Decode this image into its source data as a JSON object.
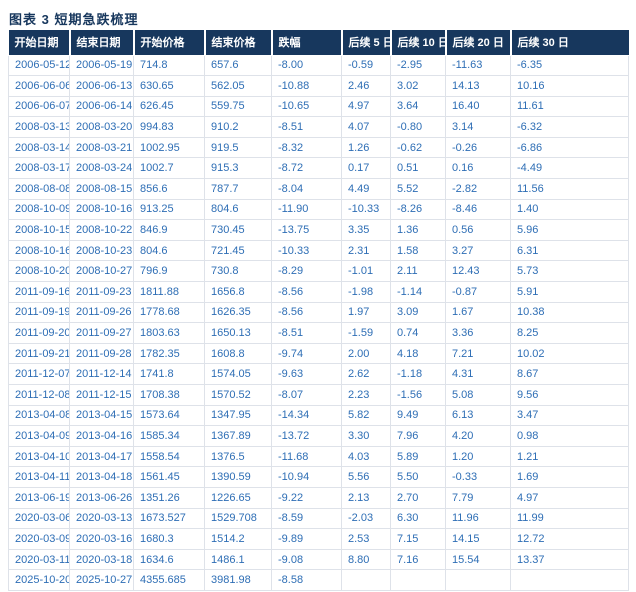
{
  "figure": {
    "title": "图表 3  短期急跌梳理"
  },
  "colors": {
    "header_bg": "#17375D",
    "header_text": "#FFFFFF",
    "cell_text": "#2E6EB5",
    "title_text": "#17375D",
    "border": "#DEE2E9",
    "page_bg": "#FFFFFF"
  },
  "chart_data": {
    "type": "table",
    "title": "图表 3  短期急跌梳理",
    "columns": [
      "开始日期",
      "结束日期",
      "开始价格",
      "结束价格",
      "跌幅",
      "后续 5 日",
      "后续 10 日",
      "后续 20 日",
      "后续 30 日"
    ],
    "rows": [
      [
        "2006-05-12",
        "2006-05-19",
        "714.8",
        "657.6",
        "-8.00",
        "-0.59",
        "-2.95",
        "-11.63",
        "-6.35"
      ],
      [
        "2006-06-06",
        "2006-06-13",
        "630.65",
        "562.05",
        "-10.88",
        "2.46",
        "3.02",
        "14.13",
        "10.16"
      ],
      [
        "2006-06-07",
        "2006-06-14",
        "626.45",
        "559.75",
        "-10.65",
        "4.97",
        "3.64",
        "16.40",
        "11.61"
      ],
      [
        "2008-03-13",
        "2008-03-20",
        "994.83",
        "910.2",
        "-8.51",
        "4.07",
        "-0.80",
        "3.14",
        "-6.32"
      ],
      [
        "2008-03-14",
        "2008-03-21",
        "1002.95",
        "919.5",
        "-8.32",
        "1.26",
        "-0.62",
        "-0.26",
        "-6.86"
      ],
      [
        "2008-03-17",
        "2008-03-24",
        "1002.7",
        "915.3",
        "-8.72",
        "0.17",
        "0.51",
        "0.16",
        "-4.49"
      ],
      [
        "2008-08-08",
        "2008-08-15",
        "856.6",
        "787.7",
        "-8.04",
        "4.49",
        "5.52",
        "-2.82",
        "11.56"
      ],
      [
        "2008-10-09",
        "2008-10-16",
        "913.25",
        "804.6",
        "-11.90",
        "-10.33",
        "-8.26",
        "-8.46",
        "1.40"
      ],
      [
        "2008-10-15",
        "2008-10-22",
        "846.9",
        "730.45",
        "-13.75",
        "3.35",
        "1.36",
        "0.56",
        "5.96"
      ],
      [
        "2008-10-16",
        "2008-10-23",
        "804.6",
        "721.45",
        "-10.33",
        "2.31",
        "1.58",
        "3.27",
        "6.31"
      ],
      [
        "2008-10-20",
        "2008-10-27",
        "796.9",
        "730.8",
        "-8.29",
        "-1.01",
        "2.11",
        "12.43",
        "5.73"
      ],
      [
        "2011-09-16",
        "2011-09-23",
        "1811.88",
        "1656.8",
        "-8.56",
        "-1.98",
        "-1.14",
        "-0.87",
        "5.91"
      ],
      [
        "2011-09-19",
        "2011-09-26",
        "1778.68",
        "1626.35",
        "-8.56",
        "1.97",
        "3.09",
        "1.67",
        "10.38"
      ],
      [
        "2011-09-20",
        "2011-09-27",
        "1803.63",
        "1650.13",
        "-8.51",
        "-1.59",
        "0.74",
        "3.36",
        "8.25"
      ],
      [
        "2011-09-21",
        "2011-09-28",
        "1782.35",
        "1608.8",
        "-9.74",
        "2.00",
        "4.18",
        "7.21",
        "10.02"
      ],
      [
        "2011-12-07",
        "2011-12-14",
        "1741.8",
        "1574.05",
        "-9.63",
        "2.62",
        "-1.18",
        "4.31",
        "8.67"
      ],
      [
        "2011-12-08",
        "2011-12-15",
        "1708.38",
        "1570.52",
        "-8.07",
        "2.23",
        "-1.56",
        "5.08",
        "9.56"
      ],
      [
        "2013-04-08",
        "2013-04-15",
        "1573.64",
        "1347.95",
        "-14.34",
        "5.82",
        "9.49",
        "6.13",
        "3.47"
      ],
      [
        "2013-04-09",
        "2013-04-16",
        "1585.34",
        "1367.89",
        "-13.72",
        "3.30",
        "7.96",
        "4.20",
        "0.98"
      ],
      [
        "2013-04-10",
        "2013-04-17",
        "1558.54",
        "1376.5",
        "-11.68",
        "4.03",
        "5.89",
        "1.20",
        "1.21"
      ],
      [
        "2013-04-11",
        "2013-04-18",
        "1561.45",
        "1390.59",
        "-10.94",
        "5.56",
        "5.50",
        "-0.33",
        "1.69"
      ],
      [
        "2013-06-19",
        "2013-06-26",
        "1351.26",
        "1226.65",
        "-9.22",
        "2.13",
        "2.70",
        "7.79",
        "4.97"
      ],
      [
        "2020-03-06",
        "2020-03-13",
        "1673.527",
        "1529.708",
        "-8.59",
        "-2.03",
        "6.30",
        "11.96",
        "11.99"
      ],
      [
        "2020-03-09",
        "2020-03-16",
        "1680.3",
        "1514.2",
        "-9.89",
        "2.53",
        "7.15",
        "14.15",
        "12.72"
      ],
      [
        "2020-03-11",
        "2020-03-18",
        "1634.6",
        "1486.1",
        "-9.08",
        "8.80",
        "7.16",
        "15.54",
        "13.37"
      ],
      [
        "2025-10-20",
        "2025-10-27",
        "4355.685",
        "3981.98",
        "-8.58",
        "",
        "",
        "",
        ""
      ]
    ]
  }
}
